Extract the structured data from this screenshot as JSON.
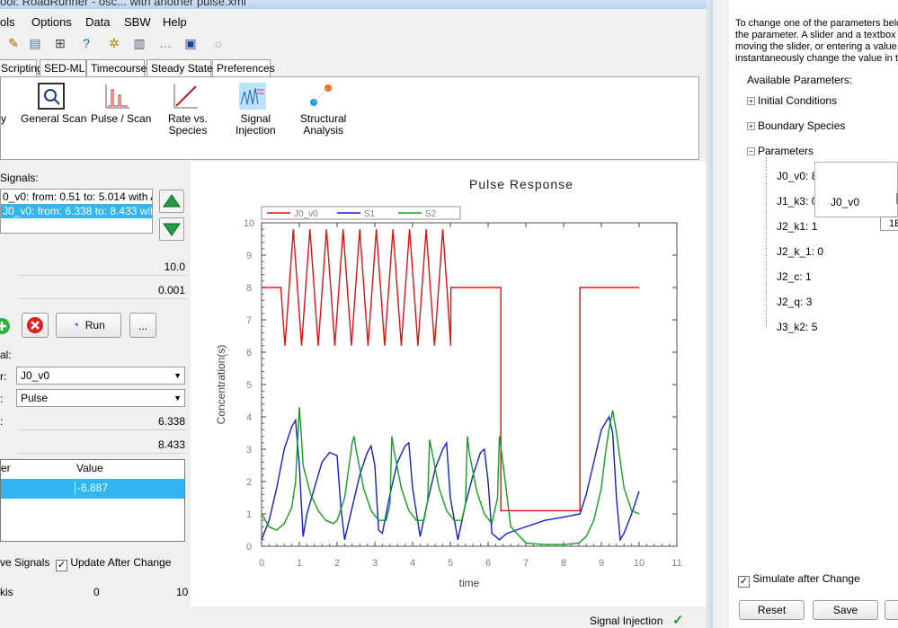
{
  "window": {
    "title": "ool: RoadRunner - osc... with another pulse.xml"
  },
  "menu": [
    "ols",
    "Options",
    "Data",
    "SBW",
    "Help"
  ],
  "tabs": [
    "Scripting",
    "SED-ML",
    "Timecourse",
    "Steady State",
    "Preferences"
  ],
  "ribbon": {
    "y_label": "y",
    "items": [
      {
        "label": "General Scan"
      },
      {
        "label": "Pulse / Scan"
      },
      {
        "label": "Rate vs.\nSpecies"
      },
      {
        "label": "Signal\nInjection"
      },
      {
        "label": "Structural\nAnalysis"
      }
    ]
  },
  "signals": {
    "label": "Signals:",
    "items": [
      {
        "text": "0_v0: from: 0.51 to: 5.014 with  Am",
        "selected": false
      },
      {
        "text": "J0_v0: from: 6.338 to: 8.433 with",
        "selected": true
      }
    ]
  },
  "fields": {
    "end_time": "10.0",
    "step": "0.001"
  },
  "buttons": {
    "run": "Run",
    "more": "..."
  },
  "signal_def": {
    "label": "al:",
    "param_label": "r:",
    "param_value": "J0_v0",
    "type_label": ":",
    "type_value": "Pulse",
    "start_label": ":",
    "start_value": "6.338",
    "end_value": "8.433"
  },
  "table": {
    "headers": [
      "er",
      "Value"
    ],
    "rows": [
      {
        "name": "",
        "value": "-6.887"
      }
    ]
  },
  "options": {
    "save_signals": "ve Signals",
    "update_after_change": "Update After Change",
    "axis_label": "kis",
    "axis_min": "0",
    "axis_max": "10"
  },
  "status": {
    "text": "Signal Injection"
  },
  "right_panel": {
    "description": [
      "To change one of the parameters belo",
      "the parameter. A slider and a textbox w",
      "moving the slider, or entering a value, w",
      "instantaneously change the value in th"
    ],
    "available_label": "Available Parameters:",
    "groups": [
      "Initial Conditions",
      "Boundary Species",
      "Parameters"
    ],
    "params": [
      "J0_v0: 8",
      "J1_k3: 0",
      "J2_k1: 1",
      "J2_k_1: 0",
      "J2_c: 1",
      "J2_q: 3",
      "J3_k2: 5"
    ],
    "slider": {
      "name": "J0_v0",
      "value": "1E"
    },
    "simulate_label": "Simulate after Change",
    "reset": "Reset",
    "save": "Save"
  },
  "chart_data": {
    "type": "line",
    "title": "Pulse Response",
    "xlabel": "time",
    "ylabel": "Concentration(s)",
    "xlim": [
      0,
      11
    ],
    "ylim": [
      0,
      10
    ],
    "xticks": [
      "0",
      "1",
      "2",
      "3",
      "4",
      "5",
      "6",
      "7",
      "8",
      "9",
      "10",
      "11"
    ],
    "yticks": [
      "0",
      "1",
      "2",
      "3",
      "4",
      "5",
      "6",
      "7",
      "8",
      "9",
      "10"
    ],
    "legend": "top",
    "colors": {
      "J0_v0": "#e01010",
      "S1": "#1020d0",
      "S2": "#10a020"
    },
    "series": [
      {
        "name": "J0_v0",
        "x": [
          0,
          0.5,
          0.51,
          0.62,
          0.73,
          0.84,
          0.95,
          1.06,
          1.17,
          1.28,
          1.39,
          1.5,
          1.61,
          1.72,
          1.83,
          1.94,
          2.05,
          2.16,
          2.27,
          2.38,
          2.49,
          2.6,
          2.71,
          2.82,
          2.93,
          3.04,
          3.15,
          3.26,
          3.37,
          3.48,
          3.59,
          3.7,
          3.81,
          3.92,
          4.03,
          4.14,
          4.25,
          4.36,
          4.47,
          4.58,
          4.69,
          4.8,
          4.91,
          5.01,
          5.014,
          6.338,
          6.338,
          8.433,
          8.433,
          10
        ],
        "y": [
          8,
          8,
          8,
          6.2,
          8,
          9.8,
          8,
          6.2,
          8,
          9.8,
          8,
          6.2,
          8,
          9.8,
          8,
          6.2,
          8,
          9.8,
          8,
          6.2,
          8,
          9.8,
          8,
          6.2,
          8,
          9.8,
          8,
          6.2,
          8,
          9.8,
          8,
          6.2,
          8,
          9.8,
          8,
          6.2,
          8,
          9.8,
          8,
          6.2,
          8,
          9.8,
          8,
          6.2,
          8,
          8,
          1.1,
          1.1,
          8,
          8
        ]
      },
      {
        "name": "S1",
        "x": [
          0,
          0.2,
          0.4,
          0.6,
          0.8,
          0.9,
          1,
          1.1,
          1.2,
          1.4,
          1.6,
          1.8,
          2,
          2.1,
          2.2,
          2.4,
          2.6,
          2.8,
          2.9,
          3,
          3.1,
          3.2,
          3.4,
          3.6,
          3.8,
          3.9,
          4,
          4.2,
          4.4,
          4.6,
          4.8,
          4.9,
          5,
          5.2,
          5.4,
          5.6,
          5.8,
          5.9,
          6,
          6.1,
          6.3,
          6.5,
          7,
          7.5,
          8,
          8.433,
          8.6,
          8.8,
          9,
          9.2,
          9.3,
          9.4,
          9.5,
          9.6,
          9.8,
          10
        ],
        "y": [
          0.2,
          0.8,
          1.8,
          3.0,
          3.7,
          3.9,
          2.5,
          0.3,
          1.0,
          1.8,
          2.6,
          2.9,
          2.8,
          1.2,
          0.2,
          1.2,
          2.2,
          2.9,
          3.1,
          2.5,
          0.5,
          0.4,
          1.6,
          2.6,
          3.1,
          3.2,
          1.8,
          0.3,
          1.4,
          2.4,
          3.0,
          3.2,
          1.5,
          0.2,
          1.3,
          2.2,
          2.9,
          3.0,
          2.0,
          0.4,
          0.2,
          0.4,
          0.6,
          0.8,
          0.9,
          1.0,
          1.6,
          2.6,
          3.6,
          4.0,
          3.5,
          1.5,
          0.2,
          0.4,
          1.0,
          1.7
        ]
      },
      {
        "name": "S2",
        "x": [
          0,
          0.2,
          0.4,
          0.6,
          0.8,
          0.9,
          1,
          1.05,
          1.1,
          1.3,
          1.5,
          1.7,
          1.9,
          2,
          2.2,
          2.4,
          2.45,
          2.5,
          2.7,
          2.9,
          3.1,
          3.3,
          3.4,
          3.45,
          3.5,
          3.7,
          3.9,
          4.1,
          4.3,
          4.4,
          4.45,
          4.5,
          4.7,
          4.9,
          5.1,
          5.3,
          5.4,
          5.45,
          5.5,
          5.7,
          5.9,
          6.1,
          6.25,
          6.3,
          6.4,
          6.6,
          7,
          7.5,
          8,
          8.4,
          8.6,
          8.8,
          9,
          9.1,
          9.2,
          9.3,
          9.4,
          9.6,
          9.8,
          10
        ],
        "y": [
          1.0,
          0.6,
          0.5,
          0.7,
          1.2,
          2.0,
          4.3,
          3.5,
          2.5,
          1.6,
          1.1,
          0.8,
          0.7,
          0.8,
          1.5,
          3.2,
          3.4,
          3.0,
          1.8,
          1.1,
          0.8,
          0.8,
          1.3,
          3.4,
          3.0,
          1.8,
          1.1,
          0.8,
          0.8,
          1.4,
          3.3,
          3.0,
          1.8,
          1.1,
          0.8,
          0.8,
          1.3,
          3.4,
          2.9,
          1.7,
          1.0,
          0.7,
          1.5,
          3.4,
          2.5,
          0.6,
          0.1,
          0.05,
          0.05,
          0.1,
          0.3,
          0.8,
          1.8,
          2.8,
          3.6,
          4.2,
          3.5,
          1.8,
          1.1,
          1.0
        ]
      }
    ]
  }
}
